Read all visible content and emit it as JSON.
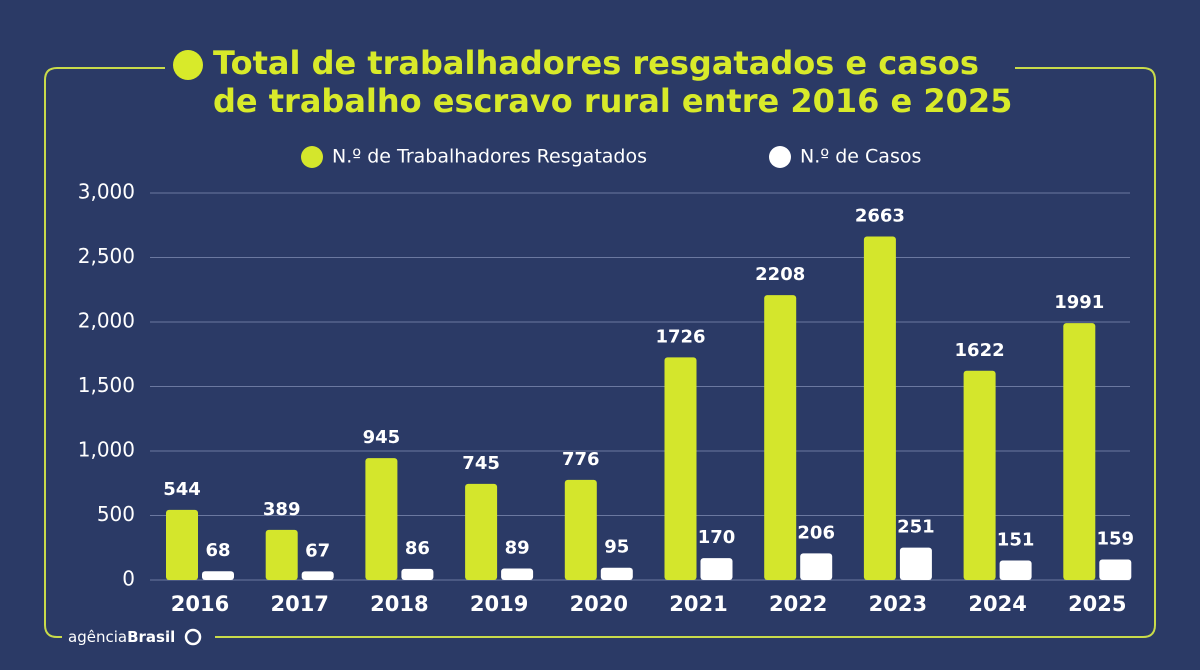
{
  "chart_data": {
    "type": "bar",
    "title": [
      "Total de trabalhadores resgatados e casos",
      "de trabalho escravo rural entre 2016 e 2025"
    ],
    "categories": [
      "2016",
      "2017",
      "2018",
      "2019",
      "2020",
      "2021",
      "2022",
      "2023",
      "2024",
      "2025"
    ],
    "series": [
      {
        "name": "N.º de Trabalhadores Resgatados",
        "color": "#d4e62c",
        "values": [
          544,
          389,
          945,
          745,
          776,
          1726,
          2208,
          2663,
          1622,
          1991
        ]
      },
      {
        "name": "N.º de Casos",
        "color": "#ffffff",
        "values": [
          68,
          67,
          86,
          89,
          95,
          170,
          206,
          251,
          151,
          159
        ]
      }
    ],
    "ylim": [
      0,
      3000
    ],
    "yticks": [
      0,
      500,
      {
        "value": 1000,
        "label": "1,000"
      },
      {
        "value": 1500,
        "label": "1,500"
      },
      {
        "value": 2000,
        "label": "2,000"
      },
      {
        "value": 2500,
        "label": "2,500"
      },
      {
        "value": 3000,
        "label": "3,000"
      }
    ],
    "grid": true,
    "logo": {
      "prefix": "agência",
      "name": "Brasil"
    }
  }
}
